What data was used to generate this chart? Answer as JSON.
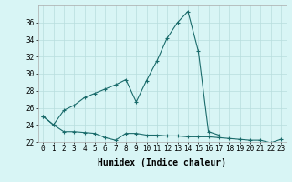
{
  "x_flat": [
    0,
    1,
    2,
    3,
    4,
    5,
    6,
    7,
    8,
    9,
    10,
    11,
    12,
    13,
    14,
    15,
    16,
    17,
    18,
    19,
    20,
    21,
    22,
    23
  ],
  "y_flat": [
    25.0,
    24.0,
    23.2,
    23.2,
    23.1,
    23.0,
    22.5,
    22.2,
    23.0,
    23.0,
    22.8,
    22.8,
    22.7,
    22.7,
    22.6,
    22.6,
    22.6,
    22.5,
    22.4,
    22.3,
    22.2,
    22.2,
    21.9,
    22.3
  ],
  "x_upper": [
    0,
    1,
    2,
    3,
    4,
    5,
    6,
    7,
    8,
    9,
    10,
    11,
    12,
    13,
    14,
    15,
    16,
    17
  ],
  "y_upper": [
    25.0,
    24.0,
    25.7,
    26.3,
    27.2,
    27.7,
    28.2,
    28.7,
    29.3,
    26.7,
    29.2,
    31.5,
    34.2,
    36.0,
    37.3,
    32.7,
    23.2,
    22.8
  ],
  "line_color": "#1a6b6b",
  "bg_color": "#d8f5f5",
  "grid_color": "#b8dede",
  "xlabel": "Humidex (Indice chaleur)",
  "ylim_min": 22,
  "ylim_max": 38,
  "xlim_min": -0.5,
  "xlim_max": 23.5,
  "yticks": [
    22,
    24,
    26,
    28,
    30,
    32,
    34,
    36
  ],
  "xticks": [
    0,
    1,
    2,
    3,
    4,
    5,
    6,
    7,
    8,
    9,
    10,
    11,
    12,
    13,
    14,
    15,
    16,
    17,
    18,
    19,
    20,
    21,
    22,
    23
  ],
  "tick_fontsize": 5.5,
  "xlabel_fontsize": 7.0
}
